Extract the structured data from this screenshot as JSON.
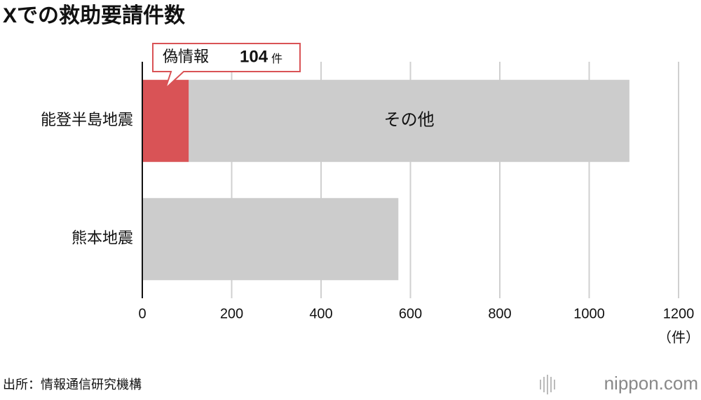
{
  "chart_data": {
    "type": "stacked-barh",
    "title": "Xでの救助要請件数",
    "categories": [
      "能登半島地震",
      "熊本地震"
    ],
    "series": [
      {
        "name": "偽情報",
        "color": "#d95356",
        "values": [
          104,
          null
        ]
      },
      {
        "name": "その他",
        "color": "#cccccc",
        "values": [
          986,
          573
        ]
      }
    ],
    "value_unit": "件",
    "x_axis_label": "（件）",
    "xlim": [
      0,
      1200
    ],
    "xticks": [
      0,
      200,
      400,
      600,
      800,
      1000,
      1200
    ],
    "grid": true,
    "source": "出所：情報通信研究機構",
    "logo": "nippon.com"
  }
}
